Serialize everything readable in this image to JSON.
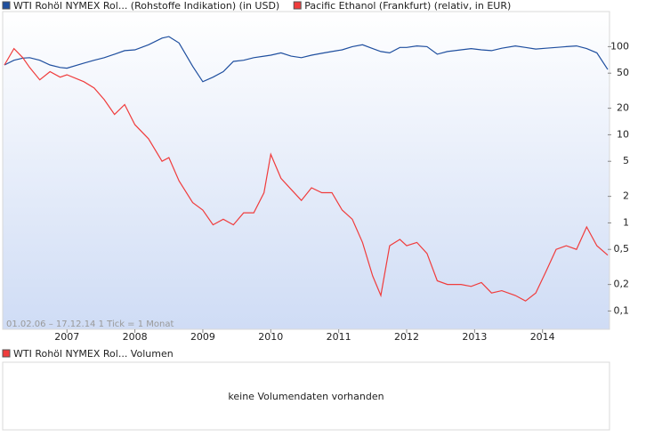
{
  "chart_data": {
    "type": "line",
    "subtitle": "01.02.06 – 17.12.14   1 Tick = 1 Monat",
    "x": [
      2006.08,
      2006.22,
      2006.35,
      2006.45,
      2006.6,
      2006.75,
      2006.9,
      2007.0,
      2007.25,
      2007.4,
      2007.55,
      2007.7,
      2007.85,
      2008.0,
      2008.2,
      2008.4,
      2008.5,
      2008.65,
      2008.85,
      2009.0,
      2009.15,
      2009.3,
      2009.45,
      2009.6,
      2009.75,
      2009.9,
      2010.0,
      2010.15,
      2010.3,
      2010.45,
      2010.6,
      2010.75,
      2010.9,
      2011.05,
      2011.2,
      2011.35,
      2011.5,
      2011.62,
      2011.75,
      2011.9,
      2012.0,
      2012.15,
      2012.3,
      2012.45,
      2012.6,
      2012.8,
      2012.95,
      2013.1,
      2013.25,
      2013.4,
      2013.6,
      2013.75,
      2013.9,
      2014.05,
      2014.2,
      2014.35,
      2014.5,
      2014.65,
      2014.8,
      2014.96
    ],
    "series": [
      {
        "name": "WTI Rohöl NYMEX Rol... (Rohstoffe Indikation) (in USD)",
        "color": "#1f4f9f",
        "values": [
          62,
          70,
          74,
          75,
          70,
          62,
          58,
          57,
          65,
          70,
          75,
          82,
          90,
          92,
          105,
          125,
          130,
          110,
          60,
          40,
          45,
          52,
          68,
          70,
          75,
          78,
          80,
          85,
          78,
          75,
          80,
          84,
          88,
          92,
          100,
          105,
          95,
          88,
          85,
          98,
          98,
          102,
          100,
          82,
          88,
          92,
          95,
          92,
          90,
          96,
          102,
          98,
          94,
          96,
          98,
          100,
          102,
          95,
          85,
          55
        ]
      },
      {
        "name": "Pacific Ethanol (Frankfurt) (relativ, in EUR)",
        "color": "#f03c3c",
        "values": [
          62,
          95,
          75,
          58,
          42,
          52,
          45,
          48,
          40,
          34,
          25,
          17,
          22,
          13,
          9,
          5,
          5.5,
          3,
          1.7,
          1.4,
          0.95,
          1.1,
          0.95,
          1.3,
          1.3,
          2.2,
          6,
          3.2,
          2.4,
          1.8,
          2.5,
          2.2,
          2.2,
          1.4,
          1.1,
          0.6,
          0.25,
          0.15,
          0.55,
          0.65,
          0.55,
          0.6,
          0.45,
          0.22,
          0.2,
          0.2,
          0.19,
          0.21,
          0.16,
          0.17,
          0.15,
          0.13,
          0.16,
          0.28,
          0.5,
          0.55,
          0.5,
          0.9,
          0.55,
          0.43
        ]
      }
    ],
    "xlim": [
      2006.08,
      2014.96
    ],
    "xticks": [
      2007,
      2008,
      2009,
      2010,
      2011,
      2012,
      2013,
      2014
    ],
    "ylim": [
      0.062,
      250
    ],
    "log_y": true,
    "yticks": [
      {
        "value": 0.1,
        "label": "0,1"
      },
      {
        "value": 0.2,
        "label": "0,2"
      },
      {
        "value": 0.5,
        "label": "0,5"
      },
      1,
      2,
      5,
      10,
      20,
      50,
      100
    ],
    "volume_legend": "WTI Rohöl NYMEX Rol... Volumen",
    "volume_message": "keine Volumendaten vorhanden"
  }
}
